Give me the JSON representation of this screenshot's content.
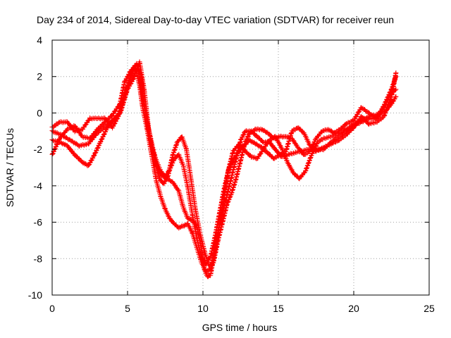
{
  "chart_data": {
    "type": "scatter",
    "title": "Day 234 of 2014, Sidereal Day-to-day VTEC variation (SDTVAR) for receiver reun",
    "xlabel": "GPS time / hours",
    "ylabel": "SDTVAR / TECUs",
    "xlim": [
      0,
      25
    ],
    "ylim": [
      -10,
      4
    ],
    "xticks": [
      0,
      5,
      10,
      15,
      20,
      25
    ],
    "yticks": [
      -10,
      -8,
      -6,
      -4,
      -2,
      0,
      2,
      4
    ],
    "xtick_labels": [
      "0",
      "5",
      "10",
      "15",
      "20",
      "25"
    ],
    "ytick_labels": [
      "-10",
      "-8",
      "-6",
      "-4",
      "-2",
      "0",
      "2",
      "4"
    ],
    "grid": true,
    "marker": "+",
    "color": "#ff0000",
    "series": [
      {
        "values": [
          [
            0.0,
            -2.3
          ],
          [
            0.5,
            -1.4
          ],
          [
            1.0,
            -0.9
          ],
          [
            1.5,
            -0.7
          ],
          [
            2.0,
            -1.3
          ],
          [
            2.5,
            -1.4
          ],
          [
            3.0,
            -0.9
          ],
          [
            3.5,
            -0.5
          ],
          [
            4.0,
            -0.1
          ],
          [
            4.5,
            0.5
          ],
          [
            4.8,
            1.7
          ],
          [
            5.2,
            2.3
          ],
          [
            5.6,
            2.7
          ],
          [
            5.9,
            2.0
          ],
          [
            6.2,
            0.0
          ],
          [
            6.5,
            -1.5
          ],
          [
            6.9,
            -2.9
          ],
          [
            7.2,
            -3.4
          ],
          [
            7.6,
            -3.6
          ],
          [
            8.0,
            -3.8
          ],
          [
            8.4,
            -4.3
          ],
          [
            8.7,
            -5.2
          ],
          [
            9.0,
            -5.8
          ],
          [
            9.3,
            -5.9
          ],
          [
            9.6,
            -6.2
          ],
          [
            9.9,
            -7.5
          ],
          [
            10.1,
            -8.6
          ],
          [
            10.3,
            -9.0
          ],
          [
            10.5,
            -8.9
          ],
          [
            10.7,
            -8.0
          ],
          [
            11.0,
            -6.5
          ],
          [
            11.3,
            -5.5
          ],
          [
            11.6,
            -4.5
          ],
          [
            11.9,
            -3.5
          ],
          [
            12.2,
            -2.5
          ],
          [
            12.5,
            -1.5
          ],
          [
            12.8,
            -1.0
          ],
          [
            13.2,
            -1.0
          ],
          [
            13.6,
            -1.3
          ],
          [
            14.0,
            -1.6
          ],
          [
            14.4,
            -1.6
          ],
          [
            14.8,
            -2.0
          ],
          [
            15.2,
            -2.4
          ],
          [
            15.6,
            -2.3
          ],
          [
            16.0,
            -2.2
          ],
          [
            16.5,
            -2.1
          ],
          [
            17.0,
            -2.0
          ],
          [
            17.5,
            -2.0
          ],
          [
            18.0,
            -2.0
          ],
          [
            18.5,
            -1.6
          ],
          [
            19.0,
            -1.3
          ],
          [
            19.5,
            -1.0
          ],
          [
            20.0,
            -0.6
          ],
          [
            20.5,
            -0.4
          ],
          [
            21.0,
            -0.2
          ],
          [
            21.5,
            -0.1
          ],
          [
            22.0,
            0.0
          ],
          [
            22.5,
            0.5
          ],
          [
            22.8,
            0.9
          ]
        ]
      },
      {
        "values": [
          [
            0.0,
            -1.5
          ],
          [
            0.5,
            -1.6
          ],
          [
            1.0,
            -1.8
          ],
          [
            1.5,
            -2.3
          ],
          [
            2.0,
            -2.7
          ],
          [
            2.4,
            -2.9
          ],
          [
            2.8,
            -2.3
          ],
          [
            3.2,
            -1.6
          ],
          [
            3.6,
            -0.9
          ],
          [
            4.0,
            -0.4
          ],
          [
            4.4,
            -0.1
          ],
          [
            4.8,
            1.0
          ],
          [
            5.2,
            2.0
          ],
          [
            5.5,
            2.6
          ],
          [
            5.8,
            1.5
          ],
          [
            6.0,
            0.3
          ],
          [
            6.3,
            -0.9
          ],
          [
            6.6,
            -2.3
          ],
          [
            6.9,
            -3.7
          ],
          [
            7.2,
            -4.6
          ],
          [
            7.5,
            -5.3
          ],
          [
            7.8,
            -5.8
          ],
          [
            8.1,
            -6.1
          ],
          [
            8.4,
            -6.3
          ],
          [
            8.7,
            -6.2
          ],
          [
            9.0,
            -6.1
          ],
          [
            9.3,
            -6.6
          ],
          [
            9.6,
            -7.4
          ],
          [
            9.9,
            -8.2
          ],
          [
            10.2,
            -8.7
          ],
          [
            10.5,
            -8.6
          ],
          [
            10.8,
            -7.6
          ],
          [
            11.1,
            -6.1
          ],
          [
            11.4,
            -4.6
          ],
          [
            11.7,
            -3.1
          ],
          [
            12.0,
            -2.1
          ],
          [
            12.4,
            -1.7
          ],
          [
            12.8,
            -2.1
          ],
          [
            13.2,
            -2.4
          ],
          [
            13.6,
            -2.5
          ],
          [
            14.0,
            -2.0
          ],
          [
            14.4,
            -1.5
          ],
          [
            14.8,
            -1.3
          ],
          [
            15.2,
            -1.9
          ],
          [
            15.6,
            -2.7
          ],
          [
            16.0,
            -3.3
          ],
          [
            16.4,
            -3.6
          ],
          [
            16.8,
            -3.2
          ],
          [
            17.2,
            -2.3
          ],
          [
            17.6,
            -1.6
          ],
          [
            18.0,
            -1.4
          ],
          [
            18.5,
            -1.3
          ],
          [
            19.0,
            -1.1
          ],
          [
            19.5,
            -0.9
          ],
          [
            20.0,
            -0.7
          ],
          [
            20.5,
            -0.5
          ],
          [
            21.0,
            -0.3
          ],
          [
            21.5,
            -0.3
          ],
          [
            22.0,
            0.4
          ],
          [
            22.5,
            1.3
          ],
          [
            22.8,
            2.0
          ]
        ]
      },
      {
        "values": [
          [
            0.0,
            -0.8
          ],
          [
            0.5,
            -0.5
          ],
          [
            1.0,
            -0.5
          ],
          [
            1.5,
            -1.0
          ],
          [
            2.0,
            -0.9
          ],
          [
            2.5,
            -0.3
          ],
          [
            3.0,
            -0.3
          ],
          [
            3.5,
            -0.3
          ],
          [
            4.0,
            -0.8
          ],
          [
            4.5,
            0.0
          ],
          [
            5.0,
            1.3
          ],
          [
            5.4,
            1.9
          ],
          [
            5.8,
            2.8
          ],
          [
            6.1,
            1.3
          ],
          [
            6.4,
            -0.9
          ],
          [
            6.8,
            -2.4
          ],
          [
            7.1,
            -3.6
          ],
          [
            7.4,
            -3.9
          ],
          [
            7.7,
            -3.4
          ],
          [
            8.0,
            -2.3
          ],
          [
            8.3,
            -1.6
          ],
          [
            8.6,
            -1.3
          ],
          [
            8.9,
            -2.0
          ],
          [
            9.2,
            -3.6
          ],
          [
            9.5,
            -5.3
          ],
          [
            9.8,
            -6.6
          ],
          [
            10.1,
            -7.6
          ],
          [
            10.4,
            -8.4
          ],
          [
            10.7,
            -8.2
          ],
          [
            11.0,
            -7.0
          ],
          [
            11.3,
            -6.0
          ],
          [
            11.6,
            -5.0
          ],
          [
            11.9,
            -4.4
          ],
          [
            12.2,
            -3.6
          ],
          [
            12.5,
            -2.6
          ],
          [
            12.8,
            -1.6
          ],
          [
            13.1,
            -1.1
          ],
          [
            13.5,
            -0.9
          ],
          [
            13.9,
            -0.9
          ],
          [
            14.3,
            -1.1
          ],
          [
            14.7,
            -1.4
          ],
          [
            15.1,
            -1.3
          ],
          [
            15.5,
            -1.3
          ],
          [
            15.9,
            -1.4
          ],
          [
            16.3,
            -1.9
          ],
          [
            16.7,
            -2.3
          ],
          [
            17.1,
            -2.1
          ],
          [
            17.5,
            -1.4
          ],
          [
            17.9,
            -1.0
          ],
          [
            18.3,
            -0.9
          ],
          [
            18.7,
            -1.1
          ],
          [
            19.1,
            -0.9
          ],
          [
            19.5,
            -0.6
          ],
          [
            20.0,
            -0.4
          ],
          [
            20.5,
            0.3
          ],
          [
            21.0,
            0.0
          ],
          [
            21.5,
            -0.3
          ],
          [
            22.0,
            0.3
          ],
          [
            22.4,
            1.0
          ],
          [
            22.8,
            1.3
          ]
        ]
      },
      {
        "values": [
          [
            0.0,
            -1.0
          ],
          [
            0.6,
            -1.2
          ],
          [
            1.2,
            -1.5
          ],
          [
            1.8,
            -1.8
          ],
          [
            2.4,
            -1.7
          ],
          [
            3.0,
            -1.1
          ],
          [
            3.6,
            -0.7
          ],
          [
            4.2,
            -0.3
          ],
          [
            4.6,
            0.2
          ],
          [
            5.0,
            1.5
          ],
          [
            5.4,
            2.4
          ],
          [
            5.7,
            2.3
          ],
          [
            6.0,
            0.8
          ],
          [
            6.3,
            -0.5
          ],
          [
            6.6,
            -1.8
          ],
          [
            6.9,
            -2.6
          ],
          [
            7.2,
            -3.2
          ],
          [
            7.5,
            -3.5
          ],
          [
            7.8,
            -3.1
          ],
          [
            8.1,
            -2.5
          ],
          [
            8.4,
            -2.3
          ],
          [
            8.7,
            -2.9
          ],
          [
            9.0,
            -4.1
          ],
          [
            9.3,
            -5.6
          ],
          [
            9.6,
            -6.9
          ],
          [
            9.9,
            -7.9
          ],
          [
            10.2,
            -8.3
          ],
          [
            10.5,
            -7.9
          ],
          [
            10.8,
            -6.8
          ],
          [
            11.1,
            -5.5
          ],
          [
            11.4,
            -4.2
          ],
          [
            11.7,
            -3.1
          ],
          [
            12.0,
            -2.6
          ],
          [
            12.3,
            -2.2
          ],
          [
            12.7,
            -1.8
          ],
          [
            13.1,
            -1.5
          ],
          [
            13.5,
            -1.7
          ],
          [
            13.9,
            -1.9
          ],
          [
            14.3,
            -2.2
          ],
          [
            14.7,
            -2.5
          ],
          [
            15.1,
            -2.3
          ],
          [
            15.5,
            -2.1
          ],
          [
            15.9,
            -1.0
          ],
          [
            16.3,
            -0.8
          ],
          [
            16.7,
            -1.1
          ],
          [
            17.1,
            -1.8
          ],
          [
            17.5,
            -2.1
          ],
          [
            18.0,
            -1.9
          ],
          [
            18.5,
            -1.7
          ],
          [
            19.0,
            -1.5
          ],
          [
            19.5,
            -1.2
          ],
          [
            20.0,
            -0.8
          ],
          [
            20.5,
            -0.2
          ],
          [
            21.0,
            -0.6
          ],
          [
            21.5,
            -0.5
          ],
          [
            22.0,
            -0.2
          ],
          [
            22.5,
            0.9
          ],
          [
            22.8,
            2.2
          ]
        ]
      }
    ]
  }
}
